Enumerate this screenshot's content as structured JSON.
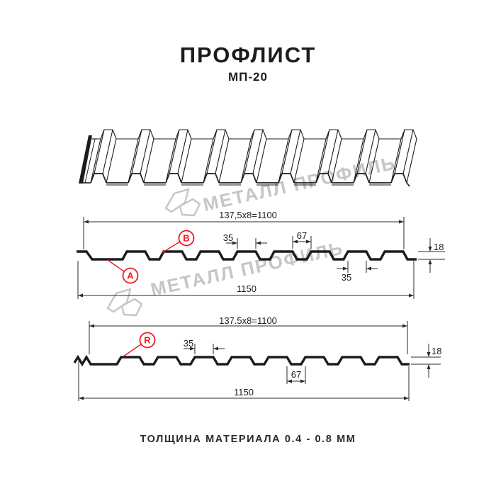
{
  "header": {
    "title": "ПРОФЛИСТ",
    "subtitle": "МП-20"
  },
  "footer": {
    "label": "ТОЛЩИНА МАТЕРИАЛА 0.4 - 0.8 ММ"
  },
  "watermark": {
    "brand": "МЕТАЛЛ ПРОФИЛЬ"
  },
  "colors": {
    "red": "#ee1c24",
    "ink": "#1c1c1c",
    "dim": "#2a2a2a",
    "watermark": "#c6c6c6"
  },
  "profile_top": {
    "callout_a": "A",
    "callout_b": "B",
    "dim_pitch": "137,5x8=1100",
    "dim_crest": "35",
    "dim_valley": "67",
    "dim_crest_right": "35",
    "dim_height": "18",
    "dim_overall": "1150"
  },
  "profile_bottom": {
    "callout_r": "R",
    "dim_pitch": "137.5x8=1100",
    "dim_crest": "35",
    "dim_valley": "67",
    "dim_height": "18",
    "dim_overall": "1150"
  }
}
